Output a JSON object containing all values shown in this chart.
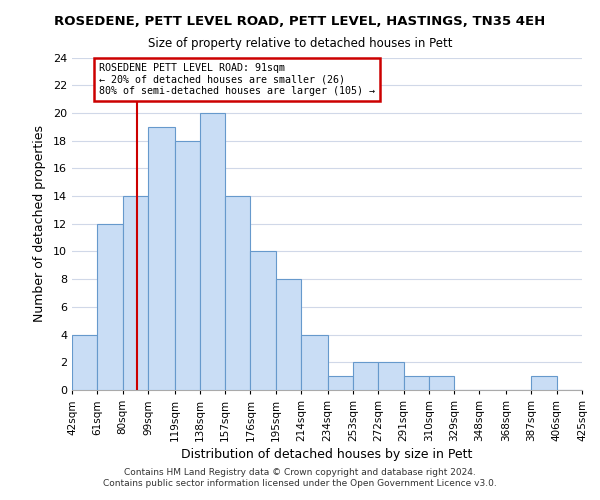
{
  "title": "ROSEDENE, PETT LEVEL ROAD, PETT LEVEL, HASTINGS, TN35 4EH",
  "subtitle": "Size of property relative to detached houses in Pett",
  "xlabel": "Distribution of detached houses by size in Pett",
  "ylabel": "Number of detached properties",
  "bins": [
    42,
    61,
    80,
    99,
    119,
    138,
    157,
    176,
    195,
    214,
    234,
    253,
    272,
    291,
    310,
    329,
    348,
    368,
    387,
    406,
    425
  ],
  "bin_labels": [
    "42sqm",
    "61sqm",
    "80sqm",
    "99sqm",
    "119sqm",
    "138sqm",
    "157sqm",
    "176sqm",
    "195sqm",
    "214sqm",
    "234sqm",
    "253sqm",
    "272sqm",
    "291sqm",
    "310sqm",
    "329sqm",
    "348sqm",
    "368sqm",
    "387sqm",
    "406sqm",
    "425sqm"
  ],
  "counts": [
    4,
    12,
    14,
    19,
    18,
    20,
    14,
    10,
    8,
    4,
    1,
    2,
    2,
    1,
    1,
    0,
    0,
    0,
    1,
    0
  ],
  "bar_color": "#c9ddf5",
  "bar_edge_color": "#6699cc",
  "vline_x": 91,
  "annotation_title": "ROSEDENE PETT LEVEL ROAD: 91sqm",
  "annotation_line1": "← 20% of detached houses are smaller (26)",
  "annotation_line2": "80% of semi-detached houses are larger (105) →",
  "annotation_box_color": "#ffffff",
  "annotation_box_edge_color": "#cc0000",
  "vline_color": "#cc0000",
  "ylim": [
    0,
    24
  ],
  "yticks": [
    0,
    2,
    4,
    6,
    8,
    10,
    12,
    14,
    16,
    18,
    20,
    22,
    24
  ],
  "footer1": "Contains HM Land Registry data © Crown copyright and database right 2024.",
  "footer2": "Contains public sector information licensed under the Open Government Licence v3.0.",
  "background_color": "#ffffff",
  "grid_color": "#d0d8e8"
}
